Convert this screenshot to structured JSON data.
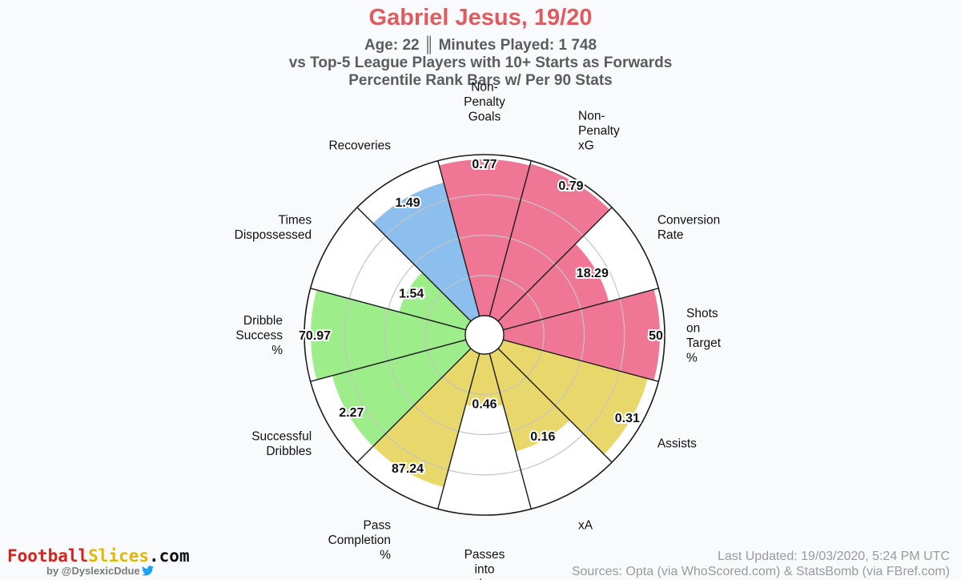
{
  "header": {
    "title": "Gabriel Jesus, 19/20",
    "line1": "Age: 22 ║ Minutes Played: 1 748",
    "line2": "vs Top-5 League Players with 10+ Starts as Forwards",
    "line3": "Percentile Rank Bars w/ Per 90 Stats"
  },
  "footer": {
    "brand_part1": "Football",
    "brand_part2": "Slices",
    "brand_part3": ".com",
    "byline": "by @DyslexicDdue",
    "updated": "Last Updated: 19/03/2020, 5:24 PM UTC",
    "sources": "Sources: Opta (via WhoScored.com) & StatsBomb (via FBref.com)"
  },
  "colors": {
    "attacking": "#f07695",
    "possession": "#9ded8a",
    "passing": "#e8d76a",
    "defending": "#8cbfee",
    "title": "#e05a5f"
  },
  "chart_data": {
    "type": "polar-bar",
    "range": [
      0,
      100
    ],
    "segments": [
      {
        "label": "Non-Penalty Goals",
        "value_label": "0.77",
        "percentile": 97,
        "group": "attacking"
      },
      {
        "label": "Non-Penalty xG",
        "value_label": "0.79",
        "percentile": 98,
        "group": "attacking"
      },
      {
        "label": "Conversion Rate",
        "value_label": "18.29",
        "percentile": 68,
        "group": "attacking"
      },
      {
        "label": "Shots on Target %",
        "value_label": "50",
        "percentile": 97,
        "group": "attacking"
      },
      {
        "label": "Assists",
        "value_label": "0.31",
        "percentile": 93,
        "group": "passing"
      },
      {
        "label": "xA",
        "value_label": "0.16",
        "percentile": 63,
        "group": "passing"
      },
      {
        "label": "Passes into the Penalty",
        "value_label": "0.46",
        "percentile": 33,
        "group": "passing"
      },
      {
        "label": "Pass Completion %",
        "value_label": "87.24",
        "percentile": 86,
        "group": "passing"
      },
      {
        "label": "Successful Dribbles",
        "value_label": "2.27",
        "percentile": 86,
        "group": "possession"
      },
      {
        "label": "Dribble Success %",
        "value_label": "70.97",
        "percentile": 96,
        "group": "possession"
      },
      {
        "label": "Times Dispossessed",
        "value_label": "1.54",
        "percentile": 43,
        "group": "possession"
      },
      {
        "label": "Recoveries",
        "value_label": "1.49",
        "percentile": 86,
        "group": "defending"
      }
    ]
  }
}
